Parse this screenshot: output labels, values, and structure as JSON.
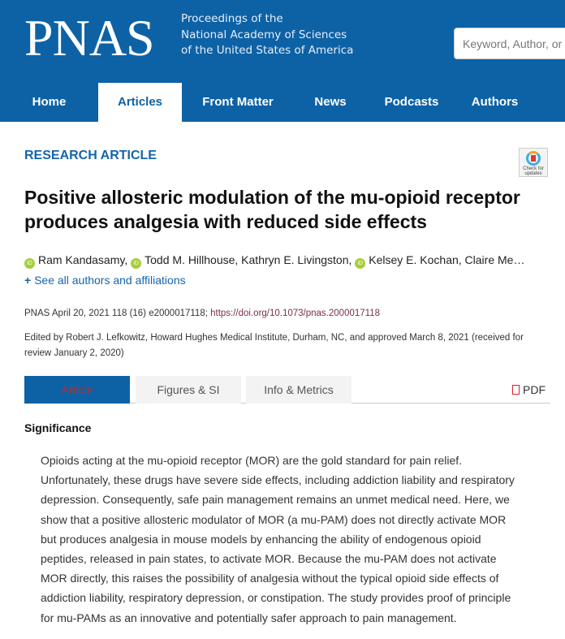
{
  "header": {
    "logo": "PNAS",
    "tagline": [
      "Proceedings of the",
      "National Academy of Sciences",
      "of the United States of America"
    ],
    "search_placeholder": "Keyword, Author, or DOI"
  },
  "nav": [
    {
      "label": "Home"
    },
    {
      "label": "Articles",
      "active": true
    },
    {
      "label": "Front Matter"
    },
    {
      "label": "News"
    },
    {
      "label": "Podcasts"
    },
    {
      "label": "Authors"
    }
  ],
  "article": {
    "type": "RESEARCH ARTICLE",
    "crossmark": "Check for updates",
    "title": "Positive allosteric modulation of the mu-opioid receptor produces analgesia with reduced side effects",
    "authors": [
      "Ram Kandasamy,",
      "Todd M. Hillhouse, Kathryn E. Livingston,",
      "Kelsey E. Kochan, Claire Me…"
    ],
    "see_all": "See all authors and affiliations",
    "citation": "PNAS April 20, 2021 118 (16) e2000017118; ",
    "doi": "https://doi.org/10.1073/pnas.2000017118",
    "edited": "Edited by Robert J. Lefkowitz, Howard Hughes Medical Institute, Durham, NC, and approved March 8, 2021 (received for review January 2, 2020)"
  },
  "tabs": [
    {
      "label": "Article",
      "active": true
    },
    {
      "label": "Figures & SI"
    },
    {
      "label": "Info & Metrics"
    }
  ],
  "pdf": "PDF",
  "significance": {
    "heading": "Significance",
    "lines": [
      "Opioids acting at the mu-opioid receptor (MOR) are the gold standard for pain relief.",
      "Unfortunately, these drugs have severe side effects, including addiction liability and respiratory",
      "depression. Consequently, safe pain management remains an unmet medical need. Here, we",
      "show that a positive allosteric modulator of MOR (a mu-PAM) does not directly activate MOR",
      "but produces analgesia in mouse models by enhancing the ability of endogenous opioid",
      "peptides, released in pain states, to activate MOR. Because the mu-PAM does not activate",
      "MOR directly, this raises the possibility of analgesia without the typical opioid side effects of",
      "addiction liability, respiratory depression, or constipation. The study provides proof of principle",
      "for mu-PAMs as an innovative and potentially safer approach to pain management."
    ]
  }
}
